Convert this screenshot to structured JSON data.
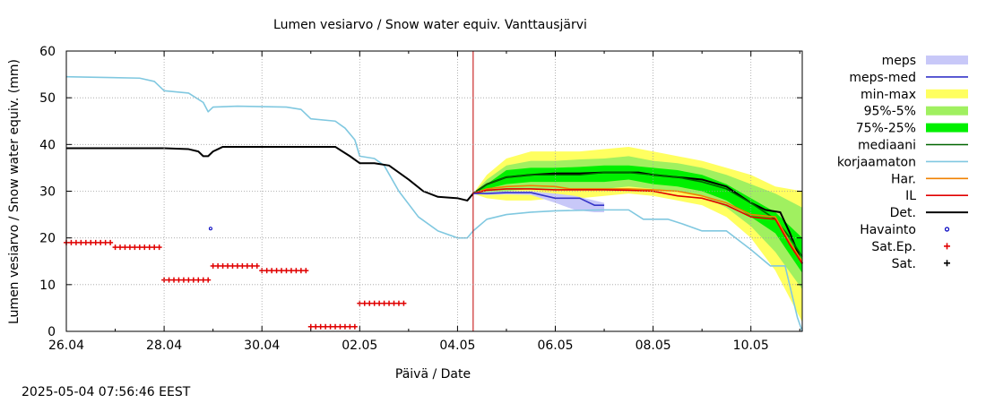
{
  "timestamp": "2025-05-04 07:56:46 EEST",
  "colors": {
    "meps": "#c8c8f8",
    "meps_med": "#3535c8",
    "min_max": "#ffff60",
    "p95_5": "#a0f060",
    "p75_25": "#00f000",
    "mediaani": "#006400",
    "korjaamaton": "#80c8e0",
    "har": "#f08000",
    "il": "#e00000",
    "det": "#000000",
    "havainto": "#0000c0",
    "sat_ep": "#e00000",
    "sat": "#000000",
    "now_line": "#c00000",
    "grid": "#a0a0a0"
  },
  "chart_data": {
    "type": "line",
    "title": "Lumen vesiarvo / Snow water equiv.   Vanttausjärvi",
    "xlabel": "Päivä / Date",
    "ylabel": "Lumen vesiarvo / Snow water equiv. (mm)",
    "x_unit": "days since 26.04",
    "xlim": [
      0,
      15.05
    ],
    "ylim": [
      0,
      60
    ],
    "x_ticks": [
      {
        "x": 0,
        "label": "26.04"
      },
      {
        "x": 2,
        "label": "28.04"
      },
      {
        "x": 4,
        "label": "30.04"
      },
      {
        "x": 6,
        "label": "02.05"
      },
      {
        "x": 8,
        "label": "04.05"
      },
      {
        "x": 10,
        "label": "06.05"
      },
      {
        "x": 12,
        "label": "08.05"
      },
      {
        "x": 14,
        "label": "10.05"
      }
    ],
    "y_ticks": [
      0,
      10,
      20,
      30,
      40,
      50,
      60
    ],
    "grid": true,
    "now_x": 8.32,
    "legend": [
      {
        "label": "meps",
        "key": "meps",
        "kind": "band"
      },
      {
        "label": "meps-med",
        "key": "meps_med",
        "kind": "line"
      },
      {
        "label": "min-max",
        "key": "min_max",
        "kind": "band"
      },
      {
        "label": "95%-5%",
        "key": "p95_5",
        "kind": "band"
      },
      {
        "label": "75%-25%",
        "key": "p75_25",
        "kind": "band"
      },
      {
        "label": "mediaani",
        "key": "mediaani",
        "kind": "line"
      },
      {
        "label": "korjaamaton",
        "key": "korjaamaton",
        "kind": "line"
      },
      {
        "label": "Har.",
        "key": "har",
        "kind": "line"
      },
      {
        "label": "IL",
        "key": "il",
        "kind": "line"
      },
      {
        "label": "Det.",
        "key": "det",
        "kind": "line"
      },
      {
        "label": "Havainto",
        "key": "havainto",
        "kind": "circle"
      },
      {
        "label": "Sat.Ep.",
        "key": "sat_ep",
        "kind": "plus"
      },
      {
        "label": "Sat.",
        "key": "sat",
        "kind": "plus"
      }
    ],
    "bands": {
      "min_max": {
        "x": [
          8.32,
          8.6,
          9.0,
          9.5,
          10.0,
          10.5,
          11.0,
          11.5,
          12.0,
          12.5,
          13.0,
          13.5,
          14.0,
          14.5,
          15.05
        ],
        "upper": [
          29.5,
          33.5,
          37.0,
          38.5,
          38.5,
          38.5,
          39.0,
          39.5,
          38.5,
          37.5,
          36.5,
          35.0,
          33.5,
          31.0,
          30.0
        ],
        "lower": [
          29.5,
          28.5,
          28.0,
          28.0,
          28.5,
          28.5,
          29.0,
          29.5,
          29.0,
          28.0,
          27.0,
          24.5,
          20.0,
          13.0,
          2.0
        ]
      },
      "p95_5": {
        "x": [
          8.32,
          8.6,
          9.0,
          9.5,
          10.0,
          10.5,
          11.0,
          11.5,
          12.0,
          12.5,
          13.0,
          13.5,
          14.0,
          14.5,
          15.05
        ],
        "upper": [
          29.5,
          32.5,
          35.5,
          36.5,
          36.5,
          36.8,
          37.0,
          37.5,
          36.5,
          36.0,
          35.0,
          33.5,
          31.5,
          29.5,
          26.5
        ],
        "lower": [
          29.5,
          29.5,
          30.0,
          30.5,
          30.5,
          30.5,
          30.5,
          31.0,
          30.5,
          30.0,
          29.0,
          26.5,
          22.5,
          17.0,
          9.0
        ]
      },
      "p75_25": {
        "x": [
          8.32,
          8.6,
          9.0,
          9.5,
          10.0,
          10.5,
          11.0,
          11.5,
          12.0,
          12.5,
          13.0,
          13.5,
          14.0,
          14.5,
          15.05
        ],
        "upper": [
          29.5,
          31.5,
          34.5,
          35.0,
          35.0,
          35.2,
          35.5,
          35.5,
          35.0,
          34.5,
          33.5,
          31.5,
          28.5,
          25.5,
          20.0
        ],
        "lower": [
          29.5,
          30.5,
          31.5,
          32.0,
          32.0,
          32.0,
          32.0,
          32.5,
          31.5,
          31.0,
          30.0,
          28.0,
          24.5,
          21.0,
          12.5
        ]
      },
      "meps": {
        "x": [
          8.32,
          8.6,
          9.0,
          9.5,
          10.0,
          10.4,
          10.8,
          11.0
        ],
        "upper": [
          29.5,
          29.8,
          30.0,
          30.0,
          29.5,
          29.0,
          28.0,
          27.5
        ],
        "lower": [
          29.5,
          29.2,
          29.3,
          29.2,
          27.5,
          26.0,
          25.5,
          25.5
        ]
      }
    },
    "series": [
      {
        "key": "korjaamaton",
        "x": [
          0,
          1.5,
          1.8,
          2.0,
          2.5,
          2.8,
          2.9,
          3.0,
          3.5,
          4.5,
          4.8,
          5.0,
          5.5,
          5.7,
          5.9,
          6.0,
          6.3,
          6.5,
          6.8,
          7.2,
          7.6,
          8.0,
          8.2,
          8.32,
          8.6,
          9.0,
          9.5,
          10.0,
          11.0,
          11.5,
          11.8,
          12.3,
          12.6,
          13.0,
          13.5,
          14.0,
          14.4,
          14.7,
          14.95,
          15.05
        ],
        "y": [
          54.5,
          54.2,
          53.5,
          51.5,
          51.0,
          49.0,
          47.0,
          48.0,
          48.2,
          48.0,
          47.5,
          45.5,
          45.0,
          43.5,
          41.0,
          37.5,
          37.0,
          35.5,
          30.0,
          24.5,
          21.5,
          20.0,
          20.0,
          21.5,
          24.0,
          25.0,
          25.5,
          25.8,
          26.0,
          26.0,
          24.0,
          24.0,
          23.0,
          21.5,
          21.5,
          17.5,
          14.0,
          14.0,
          3.0,
          0.0
        ]
      },
      {
        "key": "det",
        "x": [
          0,
          2.0,
          2.5,
          2.7,
          2.8,
          2.9,
          3.0,
          3.1,
          3.2,
          5.5,
          5.8,
          6.0,
          6.3,
          6.6,
          7.0,
          7.3,
          7.6,
          8.0,
          8.2,
          8.32,
          8.6,
          9.0,
          9.5,
          10.0,
          10.5,
          11.0,
          11.5,
          11.7,
          12.0,
          12.5,
          13.0,
          13.5,
          14.0,
          14.3,
          14.6,
          14.8,
          15.05
        ],
        "y": [
          39.2,
          39.2,
          39.0,
          38.5,
          37.5,
          37.5,
          38.5,
          39.0,
          39.5,
          39.5,
          37.5,
          36.0,
          36.0,
          35.5,
          32.5,
          30.0,
          28.8,
          28.5,
          28.0,
          29.5,
          31.5,
          33.0,
          33.5,
          33.8,
          33.8,
          34.0,
          34.0,
          34.0,
          33.5,
          33.0,
          32.5,
          31.0,
          27.5,
          26.0,
          25.5,
          21.0,
          14.5
        ]
      },
      {
        "key": "mediaani",
        "x": [
          8.32,
          8.6,
          9.0,
          9.5,
          10.0,
          10.5,
          11.0,
          11.5,
          12.0,
          12.5,
          13.0,
          13.5,
          14.0,
          14.5,
          14.8,
          15.05
        ],
        "y": [
          29.5,
          31.5,
          33.0,
          33.5,
          33.5,
          33.5,
          34.0,
          34.0,
          33.5,
          33.0,
          32.0,
          30.5,
          27.5,
          24.0,
          20.0,
          16.0
        ]
      },
      {
        "key": "har",
        "x": [
          8.32,
          8.6,
          9.0,
          9.5,
          10.0,
          10.3,
          11.0,
          11.5,
          12.0,
          12.5,
          13.0,
          13.5,
          14.0,
          14.5,
          14.8,
          15.05
        ],
        "y": [
          29.5,
          30.5,
          31.0,
          31.2,
          31.0,
          30.5,
          30.5,
          30.5,
          30.3,
          30.0,
          29.0,
          27.5,
          25.0,
          24.5,
          19.0,
          15.0
        ]
      },
      {
        "key": "il",
        "x": [
          8.32,
          8.6,
          9.0,
          9.5,
          10.0,
          10.3,
          11.0,
          11.5,
          12.0,
          12.5,
          13.0,
          13.5,
          14.0,
          14.5,
          14.8,
          15.05
        ],
        "y": [
          29.5,
          30.2,
          30.5,
          30.5,
          30.3,
          30.3,
          30.3,
          30.2,
          30.0,
          29.0,
          28.5,
          27.0,
          24.5,
          24.0,
          18.5,
          14.5
        ]
      },
      {
        "key": "meps_med",
        "x": [
          8.32,
          8.6,
          9.0,
          9.5,
          10.0,
          10.5,
          10.8,
          11.0
        ],
        "y": [
          29.5,
          29.5,
          29.7,
          29.7,
          28.5,
          28.5,
          27.0,
          27.0
        ]
      }
    ],
    "sat_ep": [
      {
        "x0": 0.0,
        "x1": 0.95,
        "y": 19.0
      },
      {
        "x0": 1.0,
        "x1": 1.95,
        "y": 18.0
      },
      {
        "x0": 2.0,
        "x1": 2.95,
        "y": 11.0
      },
      {
        "x0": 3.0,
        "x1": 3.95,
        "y": 14.0
      },
      {
        "x0": 4.0,
        "x1": 4.95,
        "y": 13.0
      },
      {
        "x0": 5.0,
        "x1": 5.95,
        "y": 1.0
      },
      {
        "x0": 6.0,
        "x1": 6.95,
        "y": 6.0
      }
    ],
    "havainto": [
      {
        "x": 2.95,
        "y": 22.0
      }
    ]
  }
}
